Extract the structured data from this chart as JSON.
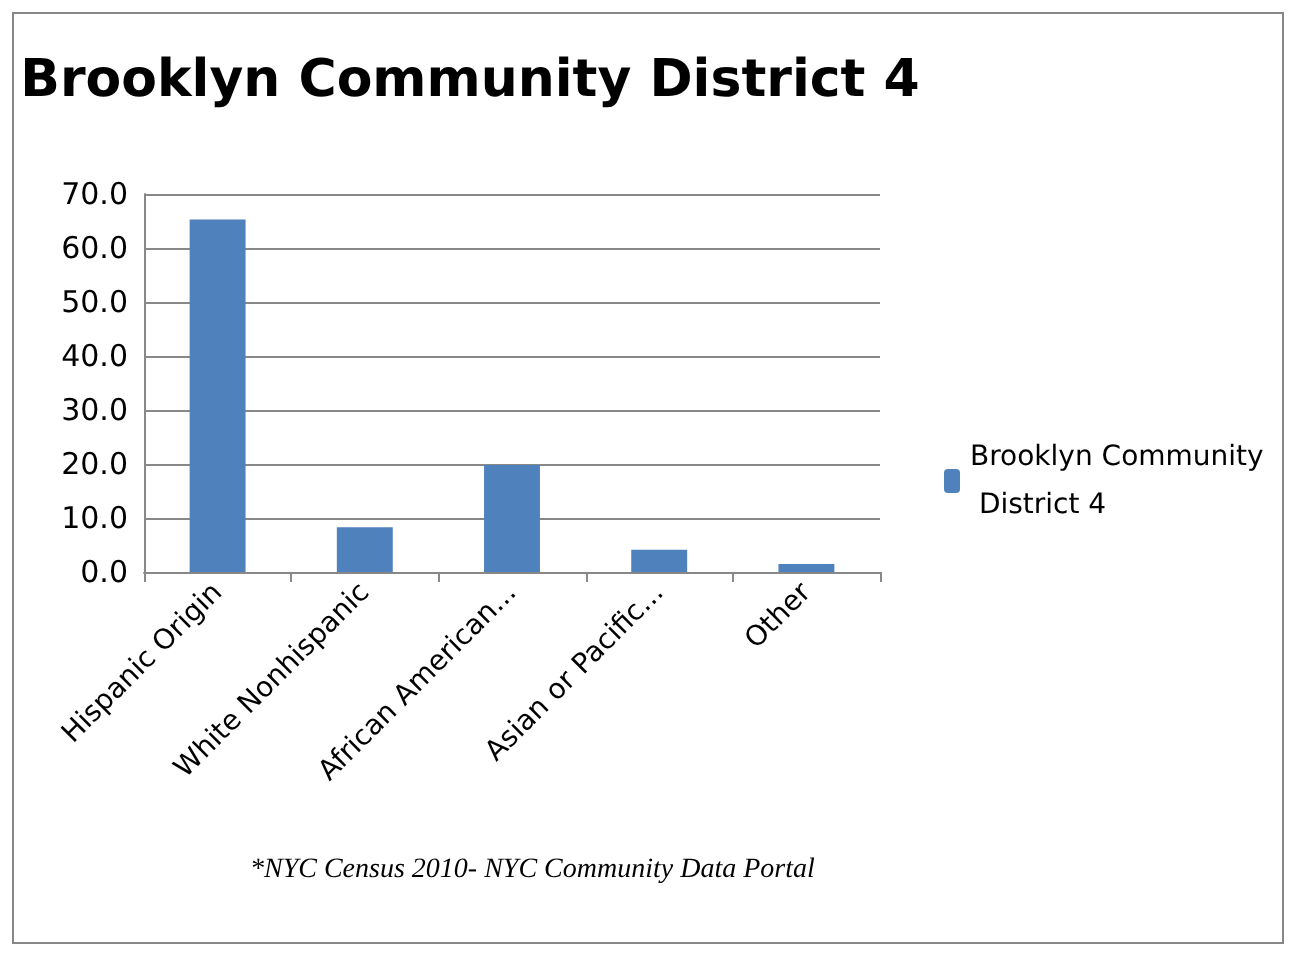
{
  "chart_data": {
    "type": "bar",
    "title": "Brooklyn Community District 4",
    "categories": [
      "Hispanic Origin",
      "White Nonhispanic",
      "African American...",
      "Asian or Pacific...",
      "Other"
    ],
    "series": [
      {
        "name": "Brooklyn Community District 4",
        "color": "#4f81bd",
        "values": [
          65.3,
          8.3,
          19.8,
          4.1,
          1.5
        ]
      }
    ],
    "ylim": [
      0,
      70
    ],
    "yticks": [
      {
        "value": 0,
        "label": "0.0"
      },
      {
        "value": 10,
        "label": "10.0"
      },
      {
        "value": 20,
        "label": "20.0"
      },
      {
        "value": 30,
        "label": "30.0"
      },
      {
        "value": 40,
        "label": "40.0"
      },
      {
        "value": 50,
        "label": "50.0"
      },
      {
        "value": 60,
        "label": "60.0"
      },
      {
        "value": 70,
        "label": "70.0"
      }
    ],
    "grid": "y",
    "legend": "right",
    "annotations": [
      "*NYC Census 2010- NYC Community Data Portal"
    ]
  }
}
